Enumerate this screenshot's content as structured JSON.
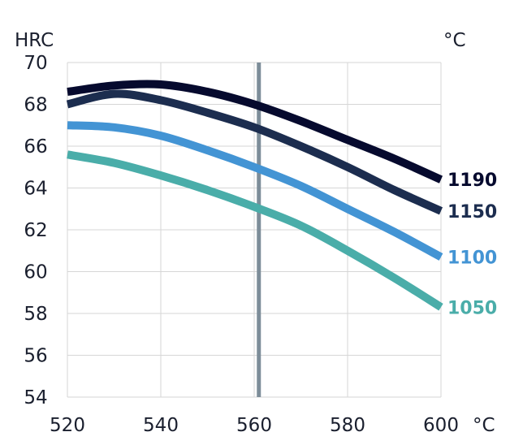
{
  "chart_data": {
    "type": "line",
    "ylabel": "HRC",
    "series_unit": "°C",
    "xunit": "°C",
    "xlim": [
      520,
      600
    ],
    "ylim": [
      54,
      70
    ],
    "x_ticks": [
      520,
      540,
      560,
      580,
      600
    ],
    "y_ticks": [
      54,
      56,
      58,
      60,
      62,
      64,
      66,
      68,
      70
    ],
    "x_tick_labels": [
      "520",
      "540",
      "560",
      "580",
      "600"
    ],
    "y_tick_labels": [
      "54",
      "56",
      "58",
      "60",
      "62",
      "64",
      "66",
      "68",
      "70"
    ],
    "grid": true,
    "reference_line_x": 561,
    "reference_line_color": "#7d8d99",
    "series": [
      {
        "name": "1190",
        "color": "#060a2e",
        "points": [
          [
            520,
            68.6
          ],
          [
            530,
            68.9
          ],
          [
            540,
            68.95
          ],
          [
            550,
            68.6
          ],
          [
            560,
            68.0
          ],
          [
            570,
            67.2
          ],
          [
            580,
            66.3
          ],
          [
            590,
            65.4
          ],
          [
            600,
            64.4
          ]
        ]
      },
      {
        "name": "1150",
        "color": "#1c2d4f",
        "points": [
          [
            520,
            68.0
          ],
          [
            530,
            68.5
          ],
          [
            540,
            68.2
          ],
          [
            550,
            67.6
          ],
          [
            560,
            66.9
          ],
          [
            570,
            66.0
          ],
          [
            580,
            65.0
          ],
          [
            590,
            63.9
          ],
          [
            600,
            62.9
          ]
        ]
      },
      {
        "name": "1100",
        "color": "#4394d4",
        "points": [
          [
            520,
            67.0
          ],
          [
            530,
            66.9
          ],
          [
            540,
            66.5
          ],
          [
            550,
            65.8
          ],
          [
            560,
            65.0
          ],
          [
            570,
            64.1
          ],
          [
            580,
            63.0
          ],
          [
            590,
            61.9
          ],
          [
            600,
            60.7
          ]
        ]
      },
      {
        "name": "1050",
        "color": "#4aada9",
        "points": [
          [
            520,
            65.6
          ],
          [
            530,
            65.2
          ],
          [
            540,
            64.6
          ],
          [
            550,
            63.9
          ],
          [
            560,
            63.1
          ],
          [
            570,
            62.2
          ],
          [
            580,
            61.0
          ],
          [
            590,
            59.7
          ],
          [
            600,
            58.3
          ]
        ]
      }
    ]
  }
}
